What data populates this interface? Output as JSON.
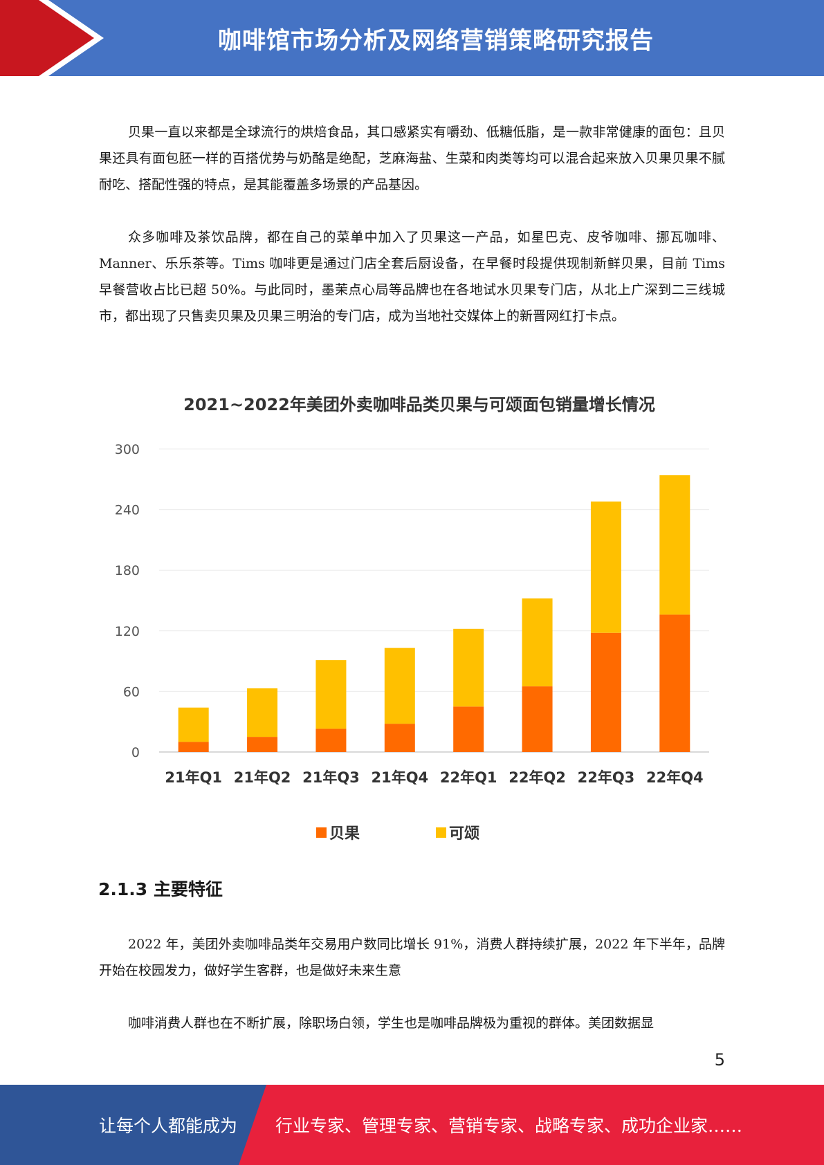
{
  "header": {
    "title": "咖啡馆市场分析及网络营销策略研究报告",
    "colors": {
      "left": "#c8171f",
      "right": "#4573c4"
    }
  },
  "paragraphs": [
    "贝果一直以来都是全球流行的烘焙食品，其口感紧实有嚼劲、低糖低脂，是一款非常健康的面包：且贝果还具有面包胚一样的百搭优势与奶酪是绝配，芝麻海盐、生菜和肉类等均可以混合起来放入贝果贝果不腻耐吃、搭配性强的特点，是其能覆盖多场景的产品基因。",
    "众多咖啡及茶饮品牌，都在自己的菜单中加入了贝果这一产品，如星巴克、皮爷咖啡、挪瓦咖啡、Manner、乐乐茶等。Tims 咖啡更是通过门店全套后厨设备，在早餐时段提供现制新鲜贝果，目前 Tims 早餐营收占比已超 50%。与此同时，墨茉点心局等品牌也在各地试水贝果专门店，从北上广深到二三线城市，都出现了只售卖贝果及贝果三明治的专门店，成为当地社交媒体上的新晋网红打卡点。"
  ],
  "chart_data": {
    "type": "bar",
    "stacked": true,
    "title": "2021~2022年美团外卖咖啡品类贝果与可颂面包销量增长情况",
    "categories": [
      "21年Q1",
      "21年Q2",
      "21年Q3",
      "21年Q4",
      "22年Q1",
      "22年Q2",
      "22年Q3",
      "22年Q4"
    ],
    "series": [
      {
        "name": "贝果",
        "color": "#ff6a00",
        "values": [
          10,
          15,
          23,
          28,
          45,
          65,
          118,
          136
        ]
      },
      {
        "name": "可颂",
        "color": "#ffc000",
        "values": [
          34,
          48,
          68,
          75,
          77,
          87,
          130,
          138
        ]
      }
    ],
    "yticks": [
      0,
      60,
      120,
      180,
      240,
      300
    ],
    "ylim": [
      0,
      300
    ],
    "grid": true,
    "legend_position": "bottom"
  },
  "section": {
    "heading": "2.1.3 主要特征",
    "paragraphs": [
      "2022 年，美团外卖咖啡品类年交易用户数同比增长 91%，消费人群持续扩展，2022 年下半年，品牌开始在校园发力，做好学生客群，也是做好未来生意",
      "咖啡消费人群也在不断扩展，除职场白领，学生也是咖啡品牌极为重视的群体。美团数据显"
    ]
  },
  "page_number": "5",
  "footer": {
    "left_text": "让每个人都能成为",
    "right_text": "行业专家、管理专家、营销专家、战略专家、成功企业家……",
    "colors": {
      "left": "#2f5597",
      "right": "#e8213c"
    }
  }
}
